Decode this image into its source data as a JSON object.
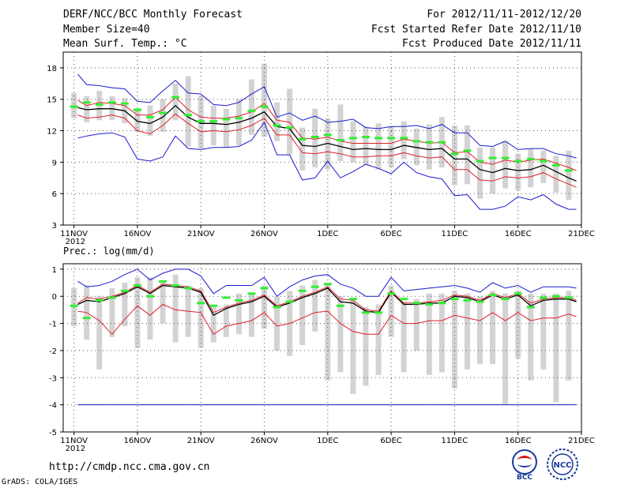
{
  "header": {
    "title": "DERF/NCC/BCC Monthly Forecast",
    "member_size": "Member Size=40",
    "variable": "Mean Surf. Temp.: °C",
    "period": "For 2012/11/11-2012/12/20",
    "fcst_started": "Fcst Started Refer Date 2012/11/10",
    "fcst_produced": "Fcst Produced Date 2012/11/11"
  },
  "footer": {
    "url": "http://cmdp.ncc.cma.gov.cn",
    "credit": "GrADS: COLA/IGES",
    "logo_left_text": "BCC",
    "logo_right_text": "NCC"
  },
  "colors": {
    "bar": "#d3d3d3",
    "green": "#33ee33",
    "mean": "#000000",
    "inner": "#e0202a",
    "outer": "#1a1ad0",
    "grid": "#555555"
  },
  "chart_data": [
    {
      "type": "line",
      "title": "Mean Surf. Temp.: °C",
      "x_tick_labels": [
        "11NOV\n2012",
        "16NOV",
        "21NOV",
        "26NOV",
        "1DEC",
        "6DEC",
        "11DEC",
        "16DEC",
        "21DEC"
      ],
      "x_tick_days": [
        0,
        5,
        10,
        15,
        20,
        25,
        30,
        35,
        40
      ],
      "ylim": [
        3,
        19.5
      ],
      "yticks": [
        3,
        6,
        9,
        12,
        15,
        18
      ],
      "x": [
        0.3,
        1,
        2,
        3,
        4,
        5,
        6,
        7,
        8,
        9,
        10,
        11,
        12,
        13,
        14,
        15,
        16,
        17,
        18,
        19,
        20,
        21,
        22,
        23,
        24,
        25,
        26,
        27,
        28,
        29,
        30,
        31,
        32,
        33,
        34,
        35,
        36,
        37,
        38,
        39,
        39.6
      ],
      "series": [
        {
          "name": "max",
          "color": "outer",
          "values": [
            17.4,
            16.4,
            16.3,
            16.1,
            16.0,
            14.8,
            14.7,
            15.8,
            16.8,
            15.6,
            15.5,
            14.5,
            14.4,
            14.7,
            15.5,
            16.2,
            13.3,
            13.7,
            13.0,
            13.4,
            12.8,
            12.9,
            13.1,
            12.3,
            12.2,
            12.4,
            12.4,
            12.5,
            12.2,
            12.6,
            11.8,
            11.8,
            10.6,
            10.5,
            11.0,
            10.2,
            10.3,
            10.3,
            9.8,
            9.6,
            9.4
          ]
        },
        {
          "name": "upper",
          "color": "inner",
          "values": [
            14.9,
            14.4,
            14.7,
            14.6,
            14.4,
            13.5,
            13.5,
            14.0,
            15.2,
            14.0,
            13.3,
            13.2,
            13.2,
            13.4,
            13.8,
            14.6,
            13.0,
            12.8,
            11.3,
            11.2,
            11.4,
            11.0,
            10.8,
            10.8,
            10.8,
            10.8,
            11.2,
            11.0,
            10.8,
            10.9,
            9.9,
            10.0,
            9.0,
            8.8,
            9.2,
            9.0,
            9.2,
            9.3,
            8.9,
            8.5,
            8.2
          ]
        },
        {
          "name": "mean",
          "color": "mean",
          "values": [
            14.2,
            14.0,
            14.1,
            14.1,
            13.9,
            12.9,
            12.7,
            13.3,
            14.4,
            13.3,
            12.7,
            12.7,
            12.6,
            12.8,
            13.2,
            13.8,
            12.4,
            12.2,
            10.6,
            10.5,
            10.8,
            10.5,
            10.2,
            10.3,
            10.2,
            10.2,
            10.6,
            10.4,
            10.2,
            10.3,
            9.3,
            9.3,
            8.3,
            8.0,
            8.4,
            8.2,
            8.3,
            8.7,
            8.1,
            7.5,
            7.2
          ]
        },
        {
          "name": "lower",
          "color": "inner",
          "values": [
            13.5,
            13.2,
            13.3,
            13.5,
            13.2,
            12.0,
            11.7,
            12.5,
            13.6,
            12.7,
            11.9,
            12.0,
            11.9,
            12.1,
            12.5,
            13.2,
            11.6,
            11.6,
            9.9,
            9.8,
            10.0,
            9.8,
            9.5,
            9.5,
            9.6,
            9.6,
            9.9,
            9.6,
            9.4,
            9.5,
            8.3,
            8.3,
            7.3,
            7.2,
            7.6,
            7.5,
            7.6,
            8.0,
            7.4,
            6.9,
            6.6
          ]
        },
        {
          "name": "min",
          "color": "outer",
          "values": [
            11.3,
            11.5,
            11.7,
            11.8,
            11.4,
            9.3,
            9.1,
            9.5,
            11.5,
            10.3,
            10.2,
            10.4,
            10.4,
            10.5,
            11.1,
            12.8,
            9.7,
            9.7,
            7.3,
            7.5,
            9.1,
            7.5,
            8.1,
            8.8,
            8.4,
            7.9,
            9.0,
            8.0,
            7.6,
            7.4,
            5.8,
            5.9,
            4.5,
            4.5,
            4.8,
            5.7,
            5.4,
            5.9,
            5.0,
            4.5,
            4.5
          ]
        }
      ],
      "bars": {
        "days": [
          0,
          1,
          2,
          3,
          4,
          5,
          6,
          7,
          8,
          9,
          10,
          11,
          12,
          13,
          14,
          15,
          16,
          17,
          18,
          19,
          20,
          21,
          22,
          23,
          24,
          25,
          26,
          27,
          28,
          29,
          30,
          31,
          32,
          33,
          34,
          35,
          36,
          37,
          38,
          39
        ],
        "low": [
          13.2,
          12.8,
          13.0,
          13.0,
          12.7,
          11.9,
          11.5,
          11.9,
          13.0,
          10.5,
          10.3,
          10.6,
          10.4,
          10.6,
          11.6,
          11.4,
          11.0,
          9.7,
          8.2,
          8.5,
          8.3,
          9.1,
          9.0,
          8.7,
          8.3,
          8.5,
          9.3,
          8.7,
          8.3,
          8.5,
          6.8,
          6.9,
          5.5,
          6.0,
          6.5,
          6.3,
          6.6,
          7.0,
          6.1,
          5.4
        ],
        "high": [
          15.6,
          15.3,
          15.8,
          15.3,
          15.1,
          14.0,
          14.4,
          15.0,
          16.5,
          17.2,
          15.3,
          14.4,
          14.1,
          15.0,
          16.9,
          18.4,
          14.7,
          16.0,
          12.3,
          14.1,
          13.2,
          14.5,
          12.9,
          12.4,
          12.7,
          12.4,
          12.9,
          12.2,
          12.6,
          13.3,
          12.5,
          12.5,
          10.4,
          10.4,
          11.0,
          9.8,
          10.3,
          10.1,
          9.6,
          10.1
        ]
      },
      "green_marks": [
        14.3,
        14.7,
        14.5,
        14.7,
        14.6,
        14.0,
        13.3,
        13.7,
        15.2,
        13.5,
        12.9,
        12.9,
        13.1,
        13.2,
        13.9,
        14.3,
        12.5,
        12.3,
        11.2,
        11.4,
        11.6,
        11.1,
        11.3,
        11.4,
        11.3,
        11.3,
        11.3,
        11.0,
        10.9,
        10.9,
        9.8,
        10.1,
        9.1,
        9.4,
        9.4,
        9.1,
        9.3,
        9.1,
        8.7,
        8.2
      ]
    },
    {
      "type": "line",
      "title": "Prec.: log(mm/d)",
      "x_tick_labels": [
        "11NOV\n2012",
        "16NOV",
        "21NOV",
        "26NOV",
        "1DEC",
        "6DEC",
        "11DEC",
        "16DEC",
        "21DEC"
      ],
      "x_tick_days": [
        0,
        5,
        10,
        15,
        20,
        25,
        30,
        35,
        40
      ],
      "ylim": [
        -5,
        1.2
      ],
      "yticks": [
        -5,
        -4,
        -3,
        -2,
        -1,
        0,
        1
      ],
      "x": [
        0.3,
        1,
        2,
        3,
        4,
        5,
        6,
        7,
        8,
        9,
        10,
        11,
        12,
        13,
        14,
        15,
        16,
        17,
        18,
        19,
        20,
        21,
        22,
        23,
        24,
        25,
        26,
        27,
        28,
        29,
        30,
        31,
        32,
        33,
        34,
        35,
        36,
        37,
        38,
        39,
        39.6
      ],
      "series": [
        {
          "name": "max",
          "color": "outer",
          "values": [
            0.55,
            0.35,
            0.4,
            0.55,
            0.8,
            1.0,
            0.6,
            0.85,
            1.0,
            1.0,
            0.75,
            0.1,
            0.4,
            0.4,
            0.4,
            0.7,
            0.0,
            0.35,
            0.6,
            0.75,
            0.8,
            0.45,
            0.3,
            0.0,
            0.0,
            0.7,
            0.2,
            0.25,
            0.3,
            0.35,
            0.4,
            0.3,
            0.15,
            0.5,
            0.3,
            0.4,
            0.15,
            0.35,
            0.35,
            0.35,
            0.3
          ]
        },
        {
          "name": "upper",
          "color": "inner",
          "values": [
            -0.25,
            -0.05,
            -0.1,
            0.0,
            0.15,
            0.4,
            0.15,
            0.45,
            0.4,
            0.35,
            0.2,
            -0.6,
            -0.4,
            -0.25,
            -0.15,
            0.05,
            -0.35,
            -0.2,
            0.0,
            0.15,
            0.35,
            -0.1,
            -0.15,
            -0.5,
            -0.55,
            0.2,
            -0.25,
            -0.25,
            -0.2,
            -0.15,
            0.05,
            0.0,
            -0.15,
            0.1,
            -0.05,
            0.1,
            -0.25,
            -0.1,
            -0.05,
            -0.05,
            -0.15
          ]
        },
        {
          "name": "mean",
          "color": "mean",
          "values": [
            -0.3,
            -0.15,
            -0.2,
            -0.05,
            0.1,
            0.35,
            0.1,
            0.4,
            0.35,
            0.3,
            0.15,
            -0.7,
            -0.45,
            -0.3,
            -0.2,
            0.0,
            -0.4,
            -0.25,
            -0.05,
            0.1,
            0.3,
            -0.2,
            -0.25,
            -0.55,
            -0.6,
            0.15,
            -0.3,
            -0.3,
            -0.25,
            -0.25,
            0.0,
            -0.05,
            -0.2,
            0.05,
            -0.1,
            0.05,
            -0.35,
            -0.15,
            -0.1,
            -0.1,
            -0.2
          ]
        },
        {
          "name": "lower",
          "color": "inner",
          "values": [
            -0.55,
            -0.6,
            -0.9,
            -1.4,
            -0.85,
            -0.35,
            -0.7,
            -0.3,
            -0.5,
            -0.55,
            -0.6,
            -1.4,
            -1.1,
            -1.0,
            -0.9,
            -0.6,
            -1.1,
            -1.0,
            -0.8,
            -0.6,
            -0.55,
            -1.0,
            -1.3,
            -1.4,
            -1.4,
            -0.7,
            -1.0,
            -1.0,
            -0.9,
            -0.9,
            -0.7,
            -0.8,
            -0.9,
            -0.6,
            -0.9,
            -0.6,
            -0.9,
            -0.8,
            -0.8,
            -0.65,
            -0.75
          ]
        },
        {
          "name": "floor",
          "color": "outer",
          "values": [
            -4.0,
            -4.0,
            -4.0,
            -4.0,
            -4.0,
            -4.0,
            -4.0,
            -4.0,
            -4.0,
            -4.0,
            -4.0,
            -4.0,
            -4.0,
            -4.0,
            -4.0,
            -4.0,
            -4.0,
            -4.0,
            -4.0,
            -4.0,
            -4.0,
            -4.0,
            -4.0,
            -4.0,
            -4.0,
            -4.0,
            -4.0,
            -4.0,
            -4.0,
            -4.0,
            -4.0,
            -4.0,
            -4.0,
            -4.0,
            -4.0,
            -4.0,
            -4.0,
            -4.0,
            -4.0,
            -4.0,
            -4.0
          ]
        }
      ],
      "bars": {
        "days": [
          0,
          1,
          2,
          3,
          4,
          5,
          6,
          7,
          8,
          9,
          10,
          11,
          12,
          13,
          14,
          15,
          16,
          17,
          18,
          19,
          20,
          21,
          22,
          23,
          24,
          25,
          26,
          27,
          28,
          29,
          30,
          31,
          32,
          33,
          34,
          35,
          36,
          37,
          38,
          39
        ],
        "low": [
          -1.1,
          -1.6,
          -2.7,
          -1.5,
          -1.1,
          -1.9,
          -1.6,
          -1.0,
          -1.7,
          -1.5,
          -1.9,
          -1.7,
          -1.5,
          -1.4,
          -1.5,
          -1.2,
          -2.0,
          -2.2,
          -1.8,
          -1.3,
          -3.1,
          -2.8,
          -3.6,
          -3.3,
          -2.9,
          -1.5,
          -2.8,
          -2.0,
          -2.9,
          -2.8,
          -3.4,
          -2.7,
          -2.5,
          -2.5,
          -4.0,
          -2.3,
          -3.1,
          -2.7,
          -3.9,
          -3.1
        ],
        "high": [
          0.3,
          0.4,
          0.0,
          0.3,
          0.5,
          0.7,
          0.7,
          0.5,
          0.8,
          0.4,
          0.3,
          -0.4,
          -0.3,
          0.1,
          0.1,
          0.4,
          0.0,
          0.2,
          0.4,
          0.6,
          0.5,
          0.0,
          -0.1,
          -0.4,
          -0.3,
          0.4,
          -0.2,
          -0.1,
          0.1,
          0.1,
          0.2,
          0.1,
          0.0,
          0.2,
          0.1,
          0.2,
          0.1,
          0.1,
          0.1,
          0.2
        ]
      },
      "green_marks": [
        -0.35,
        -0.8,
        -0.15,
        -0.05,
        0.2,
        0.4,
        0.0,
        0.55,
        0.4,
        0.3,
        -0.25,
        -0.35,
        -0.05,
        -0.15,
        0.1,
        0.3,
        -0.4,
        -0.2,
        0.2,
        0.35,
        0.45,
        -0.35,
        -0.1,
        -0.6,
        -0.6,
        0.1,
        -0.1,
        -0.25,
        -0.3,
        -0.25,
        -0.1,
        -0.15,
        -0.2,
        0.05,
        -0.1,
        0.1,
        -0.4,
        -0.05,
        0.0,
        -0.05
      ]
    }
  ]
}
